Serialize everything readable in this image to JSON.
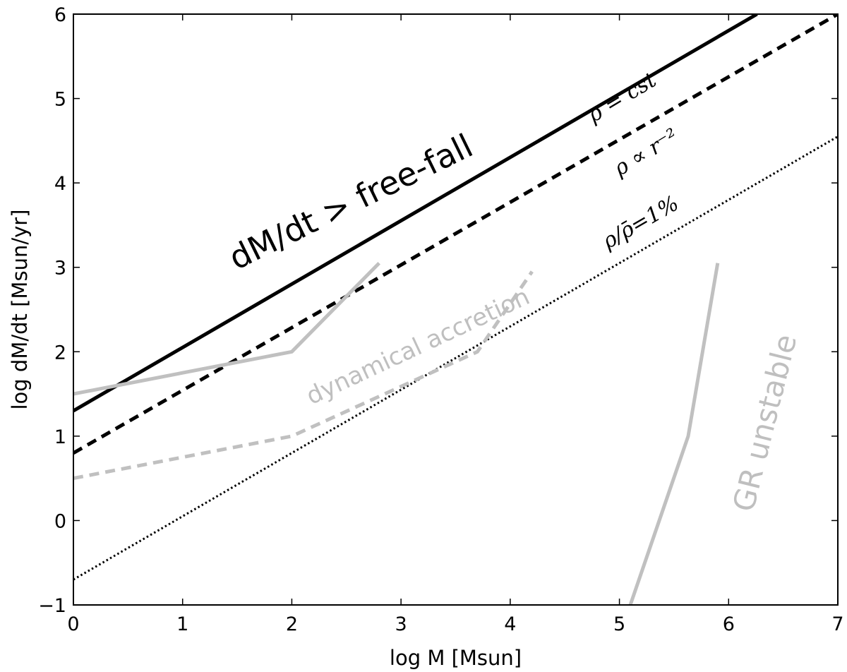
{
  "chart_data": {
    "type": "line",
    "title": "",
    "xlabel": "log M [Msun]",
    "ylabel": "log dM/dt [Msun/yr]",
    "xlim": [
      0,
      7
    ],
    "ylim": [
      -1,
      6
    ],
    "xticks": [
      0,
      1,
      2,
      3,
      4,
      5,
      6,
      7
    ],
    "yticks": [
      -1,
      0,
      1,
      2,
      3,
      4,
      5,
      6
    ],
    "grid": false,
    "legend": "none",
    "series": [
      {
        "id": "rho-cst",
        "color": "#000000",
        "style": "solid",
        "width": 5,
        "x": [
          0,
          6.26
        ],
        "y": [
          1.3,
          6.0
        ]
      },
      {
        "id": "rho-r-2",
        "color": "#000000",
        "style": "dashed",
        "width": 5,
        "x": [
          0,
          7
        ],
        "y": [
          0.8,
          6.0
        ]
      },
      {
        "id": "rho-1pct",
        "color": "#000000",
        "style": "dotted",
        "width": 3,
        "x": [
          0,
          7
        ],
        "y": [
          -0.7,
          4.55
        ]
      },
      {
        "id": "dynamical-solid",
        "color": "#c0c0c0",
        "style": "solid",
        "width": 5,
        "x": [
          0,
          2.0,
          2.8
        ],
        "y": [
          1.5,
          2.0,
          3.05
        ]
      },
      {
        "id": "dynamical-dashed",
        "color": "#c0c0c0",
        "style": "dashed",
        "width": 5,
        "x": [
          0,
          2.0,
          3.7,
          4.2
        ],
        "y": [
          0.5,
          1.0,
          2.0,
          2.95
        ]
      },
      {
        "id": "gr-unstable",
        "color": "#c0c0c0",
        "style": "solid",
        "width": 5,
        "x": [
          5.1,
          5.63,
          5.9
        ],
        "y": [
          -1.0,
          1.0,
          3.05
        ]
      }
    ],
    "annotations": [
      {
        "id": "ann-free-fall",
        "text": "dM/dt > free-fall",
        "x": 2.55,
        "y": 3.75,
        "rotation": -26,
        "size": 46,
        "color": "#000000",
        "font": "sans"
      },
      {
        "id": "ann-rho-cst",
        "text": "ρ = cst",
        "x": 5.03,
        "y": 5.0,
        "rotation": -31,
        "size": 30,
        "color": "#000000",
        "font": "serif"
      },
      {
        "id": "ann-rho-r2",
        "text": "ρ ∝ r⁻²",
        "x": 5.25,
        "y": 4.35,
        "rotation": -31,
        "size": 30,
        "color": "#000000",
        "font": "serif"
      },
      {
        "id": "ann-rho-1pct",
        "text": "ρ/ρ̄=1%",
        "x": 5.2,
        "y": 3.52,
        "rotation": -30,
        "size": 30,
        "color": "#000000",
        "font": "serif"
      },
      {
        "id": "ann-dynamical",
        "text": "dynamical accretion",
        "x": 3.16,
        "y": 2.05,
        "rotation": -25,
        "size": 34,
        "color": "#bfbfbf",
        "font": "sans"
      },
      {
        "id": "ann-gr-unstable",
        "text": "GR unstable",
        "x": 6.35,
        "y": 1.15,
        "rotation": -76,
        "size": 42,
        "color": "#bfbfbf",
        "font": "sans"
      }
    ]
  }
}
